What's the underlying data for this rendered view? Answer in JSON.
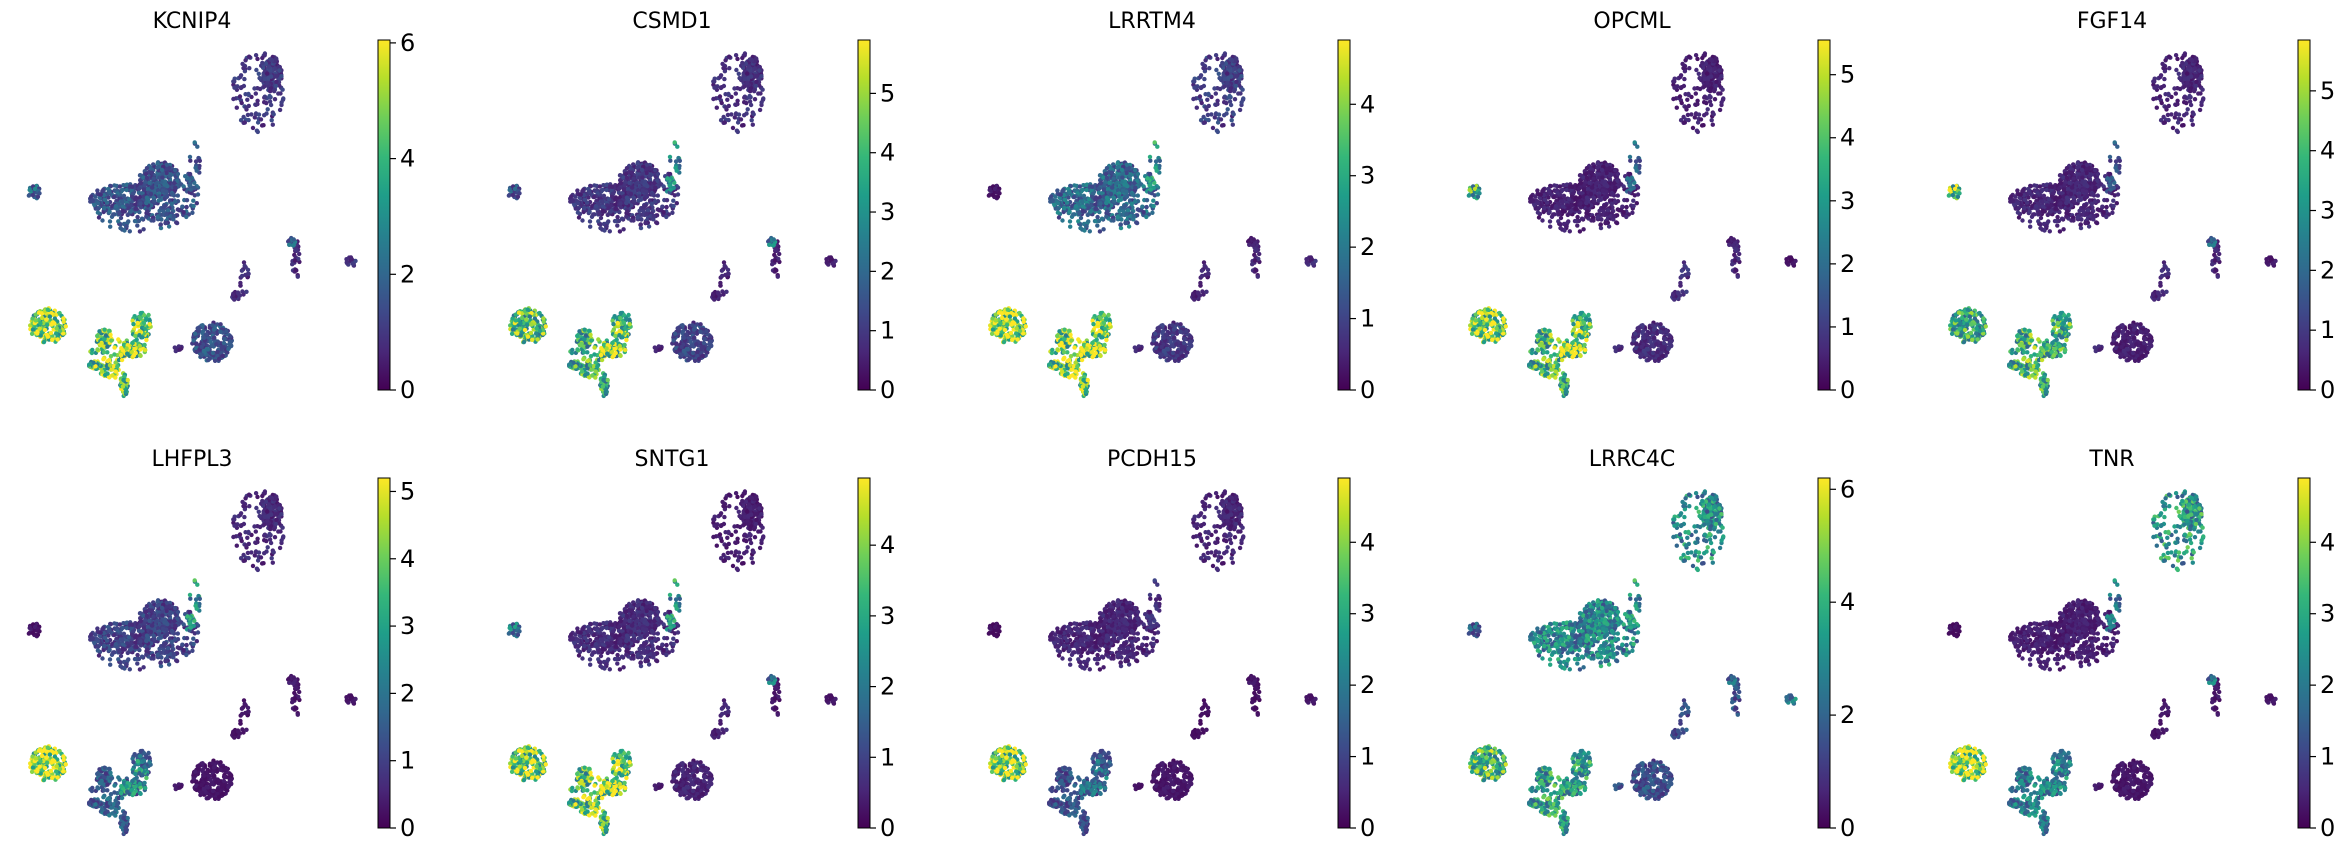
{
  "figure": {
    "description_type": "scanpy-umap-feature-plots",
    "colormap": [
      "#440154",
      "#482878",
      "#3e4989",
      "#31688e",
      "#26828e",
      "#1f9e89",
      "#35b779",
      "#6ece58",
      "#b5de2b",
      "#fde725"
    ]
  },
  "chart_data": [
    {
      "type": "scatter",
      "title": "KCNIP4",
      "colorbar_ticks": [
        "0",
        "2",
        "4",
        "6"
      ],
      "colorbar_range": [
        0,
        6.05
      ],
      "cluster_expression": {
        "c1": 1.0,
        "c2": 1.5,
        "c3": 1.6,
        "c4": 2.0,
        "c5": 0.9,
        "c6": 5.0,
        "c7": 4.5,
        "c8": 4.8,
        "c9": 1.5,
        "c10": 0.8,
        "c11": 0.7,
        "c12": 0.6,
        "c13": 2.0
      }
    },
    {
      "type": "scatter",
      "title": "CSMD1",
      "colorbar_ticks": [
        "0",
        "1",
        "2",
        "3",
        "4",
        "5"
      ],
      "colorbar_range": [
        0,
        5.9
      ],
      "cluster_expression": {
        "c1": 0.8,
        "c2": 0.9,
        "c3": 2.8,
        "c4": 1.5,
        "c5": 0.5,
        "c6": 4.0,
        "c7": 3.6,
        "c8": 4.8,
        "c9": 1.2,
        "c10": 0.6,
        "c11": 0.5,
        "c12": 0.5,
        "c13": 2.5
      }
    },
    {
      "type": "scatter",
      "title": "LRRTM4",
      "colorbar_ticks": [
        "0",
        "1",
        "2",
        "3",
        "4"
      ],
      "colorbar_range": [
        0,
        4.9
      ],
      "cluster_expression": {
        "c1": 0.9,
        "c2": 1.6,
        "c3": 2.5,
        "c4": 0.3,
        "c5": 0.6,
        "c6": 4.4,
        "c7": 3.9,
        "c8": 4.2,
        "c9": 0.8,
        "c10": 0.5,
        "c11": 0.5,
        "c12": 0.5,
        "c13": 0.4
      }
    },
    {
      "type": "scatter",
      "title": "OPCML",
      "colorbar_ticks": [
        "0",
        "1",
        "2",
        "3",
        "4",
        "5"
      ],
      "colorbar_range": [
        0,
        5.55
      ],
      "cluster_expression": {
        "c1": 0.5,
        "c2": 0.5,
        "c3": 1.8,
        "c4": 3.5,
        "c5": 0.3,
        "c6": 4.5,
        "c7": 3.6,
        "c8": 4.8,
        "c9": 0.7,
        "c10": 0.8,
        "c11": 0.6,
        "c12": 0.6,
        "c13": 0.5
      }
    },
    {
      "type": "scatter",
      "title": "FGF14",
      "colorbar_ticks": [
        "0",
        "1",
        "2",
        "3",
        "4",
        "5"
      ],
      "colorbar_range": [
        0,
        5.85
      ],
      "cluster_expression": {
        "c1": 0.6,
        "c2": 0.6,
        "c3": 1.5,
        "c4": 4.7,
        "c5": 0.4,
        "c6": 3.4,
        "c7": 3.7,
        "c8": 3.5,
        "c9": 0.5,
        "c10": 0.7,
        "c11": 0.6,
        "c12": 0.6,
        "c13": 2.0
      }
    },
    {
      "type": "scatter",
      "title": "LHFPL3",
      "colorbar_ticks": [
        "0",
        "1",
        "2",
        "3",
        "4",
        "5"
      ],
      "colorbar_range": [
        0,
        5.2
      ],
      "cluster_expression": {
        "c1": 0.6,
        "c2": 1.0,
        "c3": 2.7,
        "c4": 0.3,
        "c5": 0.3,
        "c6": 4.8,
        "c7": 1.5,
        "c8": 2.6,
        "c9": 0.3,
        "c10": 0.3,
        "c11": 0.3,
        "c12": 0.3,
        "c13": 0.4
      }
    },
    {
      "type": "scatter",
      "title": "SNTG1",
      "colorbar_ticks": [
        "0",
        "1",
        "2",
        "3",
        "4"
      ],
      "colorbar_range": [
        0,
        4.95
      ],
      "cluster_expression": {
        "c1": 0.4,
        "c2": 0.6,
        "c3": 2.6,
        "c4": 2.0,
        "c5": 0.3,
        "c6": 3.9,
        "c7": 3.6,
        "c8": 4.2,
        "c9": 0.5,
        "c10": 0.5,
        "c11": 0.3,
        "c12": 0.3,
        "c13": 2.0
      }
    },
    {
      "type": "scatter",
      "title": "PCDH15",
      "colorbar_ticks": [
        "0",
        "1",
        "2",
        "3",
        "4"
      ],
      "colorbar_range": [
        0,
        4.9
      ],
      "cluster_expression": {
        "c1": 0.5,
        "c2": 0.5,
        "c3": 0.7,
        "c4": 0.2,
        "c5": 0.3,
        "c6": 4.1,
        "c7": 1.2,
        "c8": 1.8,
        "c9": 0.3,
        "c10": 0.2,
        "c11": 0.2,
        "c12": 0.2,
        "c13": 0.3
      }
    },
    {
      "type": "scatter",
      "title": "LRRC4C",
      "colorbar_ticks": [
        "0",
        "2",
        "4",
        "6"
      ],
      "colorbar_range": [
        0,
        6.2
      ],
      "cluster_expression": {
        "c1": 3.0,
        "c2": 2.8,
        "c3": 3.2,
        "c4": 1.8,
        "c5": 2.5,
        "c6": 4.0,
        "c7": 3.4,
        "c8": 3.3,
        "c9": 1.5,
        "c10": 1.5,
        "c11": 1.5,
        "c12": 1.4,
        "c13": 2.2
      }
    },
    {
      "type": "scatter",
      "title": "TNR",
      "colorbar_ticks": [
        "0",
        "1",
        "2",
        "3",
        "4"
      ],
      "colorbar_range": [
        0,
        4.9
      ],
      "cluster_expression": {
        "c1": 2.6,
        "c2": 0.4,
        "c3": 2.0,
        "c4": 0.2,
        "c5": 0.3,
        "c6": 4.4,
        "c7": 2.0,
        "c8": 2.2,
        "c9": 0.3,
        "c10": 0.3,
        "c11": 0.3,
        "c12": 0.3,
        "c13": 2.0
      }
    }
  ]
}
